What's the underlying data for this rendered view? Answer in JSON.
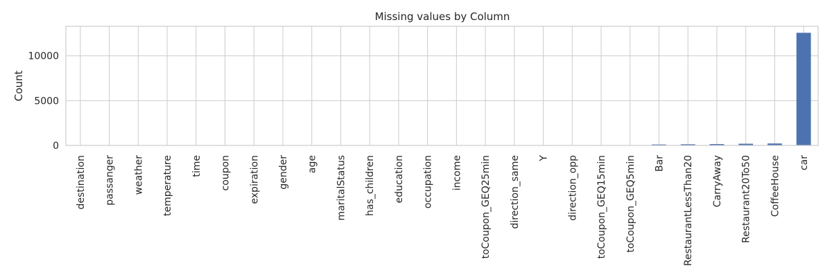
{
  "chart_data": {
    "type": "bar",
    "title": "Missing values by Column",
    "xlabel": "",
    "ylabel": "Count",
    "categories": [
      "destination",
      "passanger",
      "weather",
      "temperature",
      "time",
      "coupon",
      "expiration",
      "gender",
      "age",
      "maritalStatus",
      "has_children",
      "education",
      "occupation",
      "income",
      "toCoupon_GEQ25min",
      "direction_same",
      "Y",
      "direction_opp",
      "toCoupon_GEQ15min",
      "toCoupon_GEQ5min",
      "Bar",
      "RestaurantLessThan20",
      "CarryAway",
      "Restaurant20To50",
      "CoffeeHouse",
      "car"
    ],
    "values": [
      0,
      0,
      0,
      0,
      0,
      0,
      0,
      0,
      0,
      0,
      0,
      0,
      0,
      0,
      0,
      0,
      0,
      0,
      0,
      0,
      107,
      130,
      151,
      189,
      217,
      12576
    ],
    "ylim": [
      0,
      13300
    ],
    "yticks": [
      0,
      5000,
      10000
    ],
    "grid": true,
    "bar_color": "#4c72b0",
    "legend": "none"
  }
}
